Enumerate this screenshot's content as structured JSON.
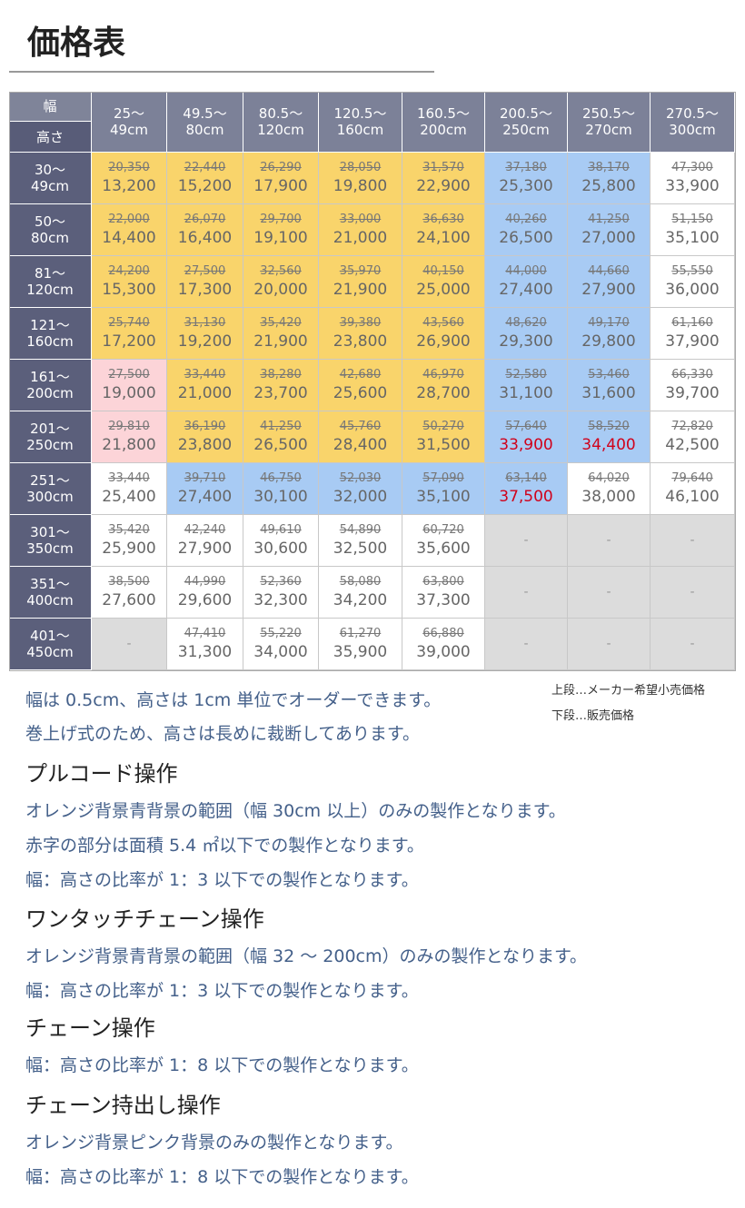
{
  "header": {
    "title": "価格表"
  },
  "table": {
    "corner": [
      "幅",
      "高さ"
    ],
    "columns": [
      [
        "25〜",
        "49cm"
      ],
      [
        "49.5〜",
        "80cm"
      ],
      [
        "80.5〜",
        "120cm"
      ],
      [
        "120.5〜",
        "160cm"
      ],
      [
        "160.5〜",
        "200cm"
      ],
      [
        "200.5〜",
        "250cm"
      ],
      [
        "250.5〜",
        "270cm"
      ],
      [
        "270.5〜",
        "300cm"
      ]
    ],
    "rows": [
      {
        "label": [
          "30〜",
          "49cm"
        ],
        "cells": [
          {
            "upper": "20,350",
            "lower": "13,200",
            "bg": "orange"
          },
          {
            "upper": "22,440",
            "lower": "15,200",
            "bg": "orange"
          },
          {
            "upper": "26,290",
            "lower": "17,900",
            "bg": "orange"
          },
          {
            "upper": "28,050",
            "lower": "19,800",
            "bg": "orange"
          },
          {
            "upper": "31,570",
            "lower": "22,900",
            "bg": "orange"
          },
          {
            "upper": "37,180",
            "lower": "25,300",
            "bg": "blue"
          },
          {
            "upper": "38,170",
            "lower": "25,800",
            "bg": "blue"
          },
          {
            "upper": "47,300",
            "lower": "33,900",
            "bg": "white"
          }
        ]
      },
      {
        "label": [
          "50〜",
          "80cm"
        ],
        "cells": [
          {
            "upper": "22,000",
            "lower": "14,400",
            "bg": "orange"
          },
          {
            "upper": "26,070",
            "lower": "16,400",
            "bg": "orange"
          },
          {
            "upper": "29,700",
            "lower": "19,100",
            "bg": "orange"
          },
          {
            "upper": "33,000",
            "lower": "21,000",
            "bg": "orange"
          },
          {
            "upper": "36,630",
            "lower": "24,100",
            "bg": "orange"
          },
          {
            "upper": "40,260",
            "lower": "26,500",
            "bg": "blue"
          },
          {
            "upper": "41,250",
            "lower": "27,000",
            "bg": "blue"
          },
          {
            "upper": "51,150",
            "lower": "35,100",
            "bg": "white"
          }
        ]
      },
      {
        "label": [
          "81〜",
          "120cm"
        ],
        "cells": [
          {
            "upper": "24,200",
            "lower": "15,300",
            "bg": "orange"
          },
          {
            "upper": "27,500",
            "lower": "17,300",
            "bg": "orange"
          },
          {
            "upper": "32,560",
            "lower": "20,000",
            "bg": "orange"
          },
          {
            "upper": "35,970",
            "lower": "21,900",
            "bg": "orange"
          },
          {
            "upper": "40,150",
            "lower": "25,000",
            "bg": "orange"
          },
          {
            "upper": "44,000",
            "lower": "27,400",
            "bg": "blue"
          },
          {
            "upper": "44,660",
            "lower": "27,900",
            "bg": "blue"
          },
          {
            "upper": "55,550",
            "lower": "36,000",
            "bg": "white"
          }
        ]
      },
      {
        "label": [
          "121〜",
          "160cm"
        ],
        "cells": [
          {
            "upper": "25,740",
            "lower": "17,200",
            "bg": "orange"
          },
          {
            "upper": "31,130",
            "lower": "19,200",
            "bg": "orange"
          },
          {
            "upper": "35,420",
            "lower": "21,900",
            "bg": "orange"
          },
          {
            "upper": "39,380",
            "lower": "23,800",
            "bg": "orange"
          },
          {
            "upper": "43,560",
            "lower": "26,900",
            "bg": "orange"
          },
          {
            "upper": "48,620",
            "lower": "29,300",
            "bg": "blue"
          },
          {
            "upper": "49,170",
            "lower": "29,800",
            "bg": "blue"
          },
          {
            "upper": "61,160",
            "lower": "37,900",
            "bg": "white"
          }
        ]
      },
      {
        "label": [
          "161〜",
          "200cm"
        ],
        "cells": [
          {
            "upper": "27,500",
            "lower": "19,000",
            "bg": "pink"
          },
          {
            "upper": "33,440",
            "lower": "21,000",
            "bg": "orange"
          },
          {
            "upper": "38,280",
            "lower": "23,700",
            "bg": "orange"
          },
          {
            "upper": "42,680",
            "lower": "25,600",
            "bg": "orange"
          },
          {
            "upper": "46,970",
            "lower": "28,700",
            "bg": "orange"
          },
          {
            "upper": "52,580",
            "lower": "31,100",
            "bg": "blue"
          },
          {
            "upper": "53,460",
            "lower": "31,600",
            "bg": "blue"
          },
          {
            "upper": "66,330",
            "lower": "39,700",
            "bg": "white"
          }
        ]
      },
      {
        "label": [
          "201〜",
          "250cm"
        ],
        "cells": [
          {
            "upper": "29,810",
            "lower": "21,800",
            "bg": "pink"
          },
          {
            "upper": "36,190",
            "lower": "23,800",
            "bg": "orange"
          },
          {
            "upper": "41,250",
            "lower": "26,500",
            "bg": "orange"
          },
          {
            "upper": "45,760",
            "lower": "28,400",
            "bg": "orange"
          },
          {
            "upper": "50,270",
            "lower": "31,500",
            "bg": "orange"
          },
          {
            "upper": "57,640",
            "lower": "33,900",
            "bg": "blue",
            "red": true
          },
          {
            "upper": "58,520",
            "lower": "34,400",
            "bg": "blue",
            "red": true
          },
          {
            "upper": "72,820",
            "lower": "42,500",
            "bg": "white"
          }
        ]
      },
      {
        "label": [
          "251〜",
          "300cm"
        ],
        "cells": [
          {
            "upper": "33,440",
            "lower": "25,400",
            "bg": "white"
          },
          {
            "upper": "39,710",
            "lower": "27,400",
            "bg": "blue"
          },
          {
            "upper": "46,750",
            "lower": "30,100",
            "bg": "blue"
          },
          {
            "upper": "52,030",
            "lower": "32,000",
            "bg": "blue"
          },
          {
            "upper": "57,090",
            "lower": "35,100",
            "bg": "blue"
          },
          {
            "upper": "63,140",
            "lower": "37,500",
            "bg": "blue",
            "red": true
          },
          {
            "upper": "64,020",
            "lower": "38,000",
            "bg": "white"
          },
          {
            "upper": "79,640",
            "lower": "46,100",
            "bg": "white"
          }
        ]
      },
      {
        "label": [
          "301〜",
          "350cm"
        ],
        "cells": [
          {
            "upper": "35,420",
            "lower": "25,900",
            "bg": "white"
          },
          {
            "upper": "42,240",
            "lower": "27,900",
            "bg": "white"
          },
          {
            "upper": "49,610",
            "lower": "30,600",
            "bg": "white"
          },
          {
            "upper": "54,890",
            "lower": "32,500",
            "bg": "white"
          },
          {
            "upper": "60,720",
            "lower": "35,600",
            "bg": "white"
          },
          {
            "text": "-",
            "bg": "gray"
          },
          {
            "text": "-",
            "bg": "gray"
          },
          {
            "text": "-",
            "bg": "gray"
          }
        ]
      },
      {
        "label": [
          "351〜",
          "400cm"
        ],
        "cells": [
          {
            "upper": "38,500",
            "lower": "27,600",
            "bg": "white"
          },
          {
            "upper": "44,990",
            "lower": "29,600",
            "bg": "white"
          },
          {
            "upper": "52,360",
            "lower": "32,300",
            "bg": "white"
          },
          {
            "upper": "58,080",
            "lower": "34,200",
            "bg": "white"
          },
          {
            "upper": "63,800",
            "lower": "37,300",
            "bg": "white"
          },
          {
            "text": "-",
            "bg": "gray"
          },
          {
            "text": "-",
            "bg": "gray"
          },
          {
            "text": "-",
            "bg": "gray"
          }
        ]
      },
      {
        "label": [
          "401〜",
          "450cm"
        ],
        "cells": [
          {
            "text": "-",
            "bg": "gray"
          },
          {
            "upper": "47,410",
            "lower": "31,300",
            "bg": "white"
          },
          {
            "upper": "55,220",
            "lower": "34,000",
            "bg": "white"
          },
          {
            "upper": "61,270",
            "lower": "35,900",
            "bg": "white"
          },
          {
            "upper": "66,880",
            "lower": "39,000",
            "bg": "white"
          },
          {
            "text": "-",
            "bg": "gray"
          },
          {
            "text": "-",
            "bg": "gray"
          },
          {
            "text": "-",
            "bg": "gray"
          }
        ]
      }
    ]
  },
  "legend": [
    "上段…メーカー希望小売価格",
    "下段…販売価格"
  ],
  "notes": [
    "幅は 0.5cm、高さは 1cm 単位でオーダーできます。",
    "巻上げ式のため、高さは長めに裁断してあります。"
  ],
  "sections": [
    {
      "heading": "プルコード操作",
      "lines": [
        "オレンジ背景青背景の範囲（幅 30cm 以上）のみの製作となります。",
        "赤字の部分は面積 5.4 ㎡以下での製作となります。",
        "幅：高さの比率が 1：3 以下での製作となります。"
      ]
    },
    {
      "heading": "ワンタッチチェーン操作",
      "lines": [
        "オレンジ背景青背景の範囲（幅 32 〜 200cm）のみの製作となります。",
        "幅：高さの比率が 1：3 以下での製作となります。"
      ]
    },
    {
      "heading": "チェーン操作",
      "lines": [
        "幅：高さの比率が 1：8 以下での製作となります。"
      ]
    },
    {
      "heading": "チェーン持出し操作",
      "lines": [
        "オレンジ背景ピンク背景のみの製作となります。",
        "幅：高さの比率が 1：8 以下での製作となります。"
      ]
    }
  ]
}
